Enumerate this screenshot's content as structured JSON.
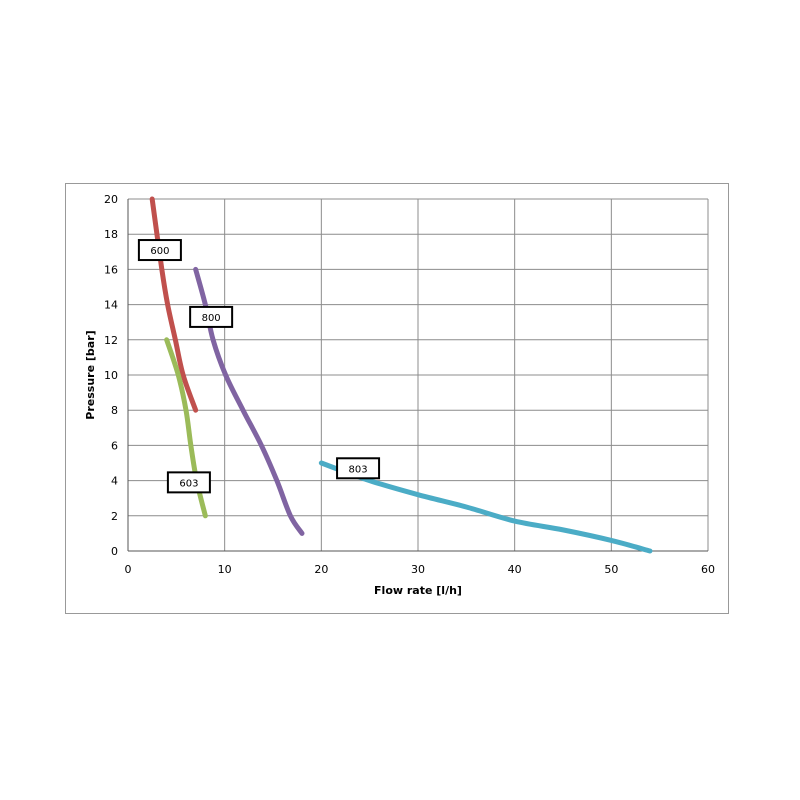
{
  "chart_data": {
    "type": "line",
    "title": "",
    "xlabel": "Flow rate [l/h]",
    "ylabel": "Pressure [bar]",
    "xlim": [
      0,
      60
    ],
    "ylim": [
      0,
      20
    ],
    "xticks": [
      0,
      10,
      20,
      30,
      40,
      50,
      60
    ],
    "yticks": [
      0,
      2,
      4,
      6,
      8,
      10,
      12,
      14,
      16,
      18,
      20
    ],
    "grid": true,
    "legend": "none",
    "series": [
      {
        "name": "600",
        "color": "#c0504d",
        "x": [
          2.5,
          3.5,
          4.1,
          4.9,
          5.7,
          7
        ],
        "y": [
          20,
          16,
          14,
          12,
          10,
          8
        ]
      },
      {
        "name": "800",
        "color": "#8064a2",
        "x": [
          7,
          8,
          8.8,
          10.1,
          11.9,
          13.8,
          15.4,
          16.8,
          18
        ],
        "y": [
          16,
          14,
          12,
          10,
          8,
          6,
          4,
          2,
          1
        ]
      },
      {
        "name": "603",
        "color": "#9bbb59",
        "x": [
          4,
          5.2,
          6,
          6.5,
          7.1,
          8
        ],
        "y": [
          12,
          10,
          8,
          6,
          4,
          2
        ]
      },
      {
        "name": "803",
        "color": "#4bacc6",
        "x": [
          20,
          25,
          30,
          35,
          40,
          45,
          50,
          54
        ],
        "y": [
          5,
          4,
          3.2,
          2.5,
          1.7,
          1.2,
          0.6,
          0
        ]
      }
    ]
  }
}
